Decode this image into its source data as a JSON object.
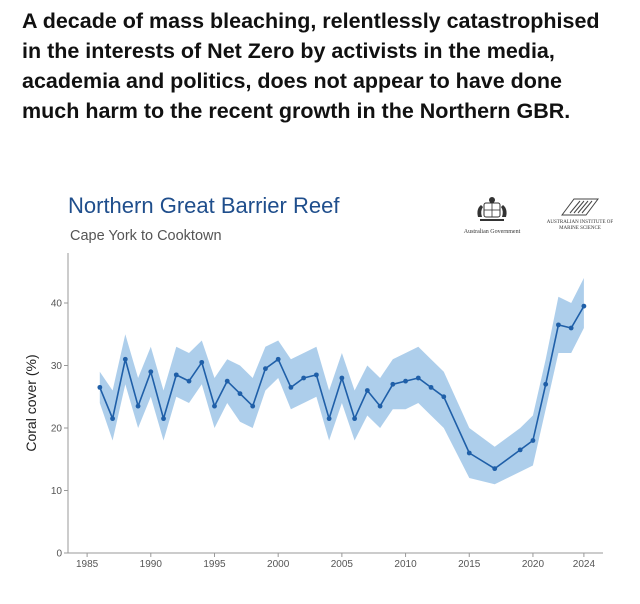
{
  "post": {
    "caption": "A decade of mass bleaching, relentlessly catastrophised in the interests of Net Zero by activists in the media, academia and politics, does not appear to have done much harm to the recent growth in the Northern GBR."
  },
  "logos": {
    "gov_text": "Australian Government",
    "aims_text": "AUSTRALIAN INSTITUTE OF MARINE SCIENCE"
  },
  "chart_data": {
    "type": "line",
    "title": "Northern Great Barrier Reef",
    "subtitle": "Cape York to Cooktown",
    "xlabel": "",
    "ylabel": "Coral cover (%)",
    "xlim": [
      1983.5,
      2025.5
    ],
    "ylim": [
      0,
      48
    ],
    "x_ticks": [
      1985,
      1990,
      1995,
      2000,
      2005,
      2010,
      2015,
      2020,
      2024
    ],
    "y_ticks": [
      0,
      10,
      20,
      30,
      40
    ],
    "grid": false,
    "colors": {
      "line": "#1f5fa8",
      "band": "#9fc5e8",
      "axis": "#999999"
    },
    "series": [
      {
        "x": [
          1986,
          1987,
          1988,
          1989,
          1990,
          1991,
          1992,
          1993,
          1994,
          1995,
          1996,
          1997,
          1998,
          1999,
          2000,
          2001,
          2002,
          2003,
          2004,
          2005,
          2006,
          2007,
          2008,
          2009,
          2010,
          2011,
          2012,
          2013,
          2015,
          2017,
          2019,
          2020,
          2021,
          2022,
          2023,
          2024
        ],
        "y": [
          26.5,
          21.5,
          31,
          23.5,
          29,
          21.5,
          28.5,
          27.5,
          30.5,
          23.5,
          27.5,
          25.5,
          23.5,
          29.5,
          31,
          26.5,
          28,
          28.5,
          21.5,
          28,
          21.5,
          26,
          23.5,
          27,
          27.5,
          28,
          26.5,
          25,
          16,
          13.5,
          16.5,
          18,
          27,
          36.5,
          36,
          39.5
        ],
        "upper": [
          29,
          26,
          35,
          28,
          33,
          26,
          33,
          32,
          34,
          28,
          31,
          30,
          28,
          33,
          34,
          31,
          32,
          33,
          26,
          32,
          26,
          30,
          28,
          31,
          32,
          33,
          31,
          29,
          20,
          17,
          20,
          22,
          31,
          41,
          40,
          44
        ],
        "lower": [
          24,
          18,
          27,
          20,
          25,
          18,
          25,
          24,
          27,
          20,
          24,
          21,
          20,
          26,
          28,
          23,
          24,
          25,
          18,
          24,
          18,
          22,
          20,
          23,
          23,
          24,
          22,
          20,
          12,
          11,
          13,
          14,
          23,
          32,
          32,
          36
        ]
      }
    ]
  }
}
